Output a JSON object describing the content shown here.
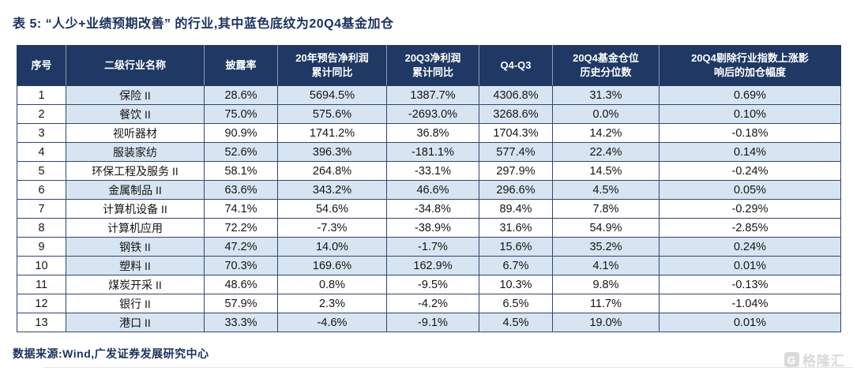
{
  "title": "表 5:  “人少+业绩预期改善” 的行业,其中蓝色底纹为20Q4基金加仓",
  "colors": {
    "header_bg": "#1f3864",
    "highlight_row_bg": "#d7e4f2",
    "title_text": "#1b3260",
    "grid_border": "#33466d"
  },
  "table": {
    "columns": [
      {
        "lines": [
          "序号"
        ]
      },
      {
        "lines": [
          "二级行业名称"
        ]
      },
      {
        "lines": [
          "披露率"
        ]
      },
      {
        "lines": [
          "20年预告净利润",
          "累计同比"
        ]
      },
      {
        "lines": [
          "20Q3净利润",
          "累计同比"
        ]
      },
      {
        "lines": [
          "Q4-Q3"
        ]
      },
      {
        "lines": [
          "20Q4基金仓位",
          "历史分位数"
        ]
      },
      {
        "lines": [
          "20Q4剔除行业指数上涨影",
          "响后的加仓幅度"
        ]
      }
    ],
    "rows": [
      {
        "no": "1",
        "name": "保险 II",
        "disclosure": "28.6%",
        "forecast": "5694.5%",
        "q3": "1387.7%",
        "q4q3": "4306.8%",
        "percentile": "31.3%",
        "add": "0.69%",
        "highlight": true
      },
      {
        "no": "2",
        "name": "餐饮 II",
        "disclosure": "75.0%",
        "forecast": "575.6%",
        "q3": "-2693.0%",
        "q4q3": "3268.6%",
        "percentile": "0.0%",
        "add": "0.10%",
        "highlight": true
      },
      {
        "no": "3",
        "name": "视听器材",
        "disclosure": "90.9%",
        "forecast": "1741.2%",
        "q3": "36.8%",
        "q4q3": "1704.3%",
        "percentile": "14.2%",
        "add": "-0.18%",
        "highlight": false
      },
      {
        "no": "4",
        "name": "服装家纺",
        "disclosure": "52.6%",
        "forecast": "396.3%",
        "q3": "-181.1%",
        "q4q3": "577.4%",
        "percentile": "22.4%",
        "add": "0.14%",
        "highlight": true
      },
      {
        "no": "5",
        "name": "环保工程及服务 II",
        "disclosure": "58.1%",
        "forecast": "264.8%",
        "q3": "-33.1%",
        "q4q3": "297.9%",
        "percentile": "14.5%",
        "add": "-0.24%",
        "highlight": false
      },
      {
        "no": "6",
        "name": "金属制品 II",
        "disclosure": "63.6%",
        "forecast": "343.2%",
        "q3": "46.6%",
        "q4q3": "296.6%",
        "percentile": "4.5%",
        "add": "0.05%",
        "highlight": true
      },
      {
        "no": "7",
        "name": "计算机设备 II",
        "disclosure": "74.1%",
        "forecast": "54.6%",
        "q3": "-34.8%",
        "q4q3": "89.4%",
        "percentile": "7.8%",
        "add": "-0.29%",
        "highlight": false
      },
      {
        "no": "8",
        "name": "计算机应用",
        "disclosure": "72.2%",
        "forecast": "-7.3%",
        "q3": "-38.9%",
        "q4q3": "31.6%",
        "percentile": "54.9%",
        "add": "-2.85%",
        "highlight": false
      },
      {
        "no": "9",
        "name": "钢铁 II",
        "disclosure": "47.2%",
        "forecast": "14.0%",
        "q3": "-1.7%",
        "q4q3": "15.6%",
        "percentile": "35.2%",
        "add": "0.24%",
        "highlight": true
      },
      {
        "no": "10",
        "name": "塑料 II",
        "disclosure": "70.3%",
        "forecast": "169.6%",
        "q3": "162.9%",
        "q4q3": "6.7%",
        "percentile": "4.1%",
        "add": "0.01%",
        "highlight": true
      },
      {
        "no": "11",
        "name": "煤炭开采 II",
        "disclosure": "48.6%",
        "forecast": "0.8%",
        "q3": "-9.5%",
        "q4q3": "10.3%",
        "percentile": "9.8%",
        "add": "-0.13%",
        "highlight": false
      },
      {
        "no": "12",
        "name": "银行 II",
        "disclosure": "57.9%",
        "forecast": "2.3%",
        "q3": "-4.2%",
        "q4q3": "6.5%",
        "percentile": "11.7%",
        "add": "-1.04%",
        "highlight": false
      },
      {
        "no": "13",
        "name": "港口 II",
        "disclosure": "33.3%",
        "forecast": "-4.6%",
        "q3": "-9.1%",
        "q4q3": "4.5%",
        "percentile": "19.0%",
        "add": "0.01%",
        "highlight": true
      }
    ]
  },
  "footer": {
    "source": "数据来源:Wind,广发证券发展研究中心"
  },
  "watermark": {
    "icon": "G",
    "text": "格隆汇"
  }
}
